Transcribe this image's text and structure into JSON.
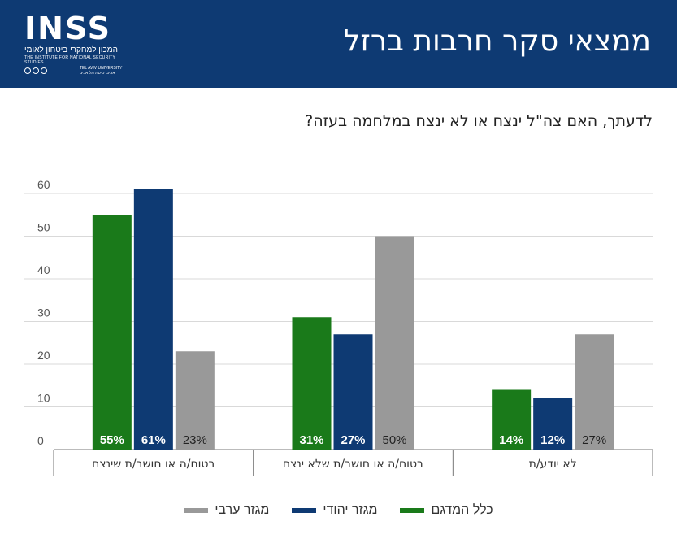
{
  "header": {
    "title": "ממצאי סקר חרבות ברזל",
    "logo": {
      "name": "INSS",
      "hebrew": "המכון למחקרי ביטחון לאומי",
      "english": "THE INSTITUTE FOR NATIONAL SECURITY STUDIES",
      "university": "אוניברסיטת תל אביב",
      "university_en": "TEL AVIV UNIVERSITY"
    }
  },
  "colors": {
    "header_bg": "#0e3a73",
    "green": "#1a7a1a",
    "blue": "#0e3a73",
    "gray": "#999999"
  },
  "chart_data": {
    "type": "bar",
    "title": "לדעתך, האם צה\"ל ינצח או לא ינצח במלחמה בעזה?",
    "categories": [
      "בטוח/ה או חושב/ת שינצח",
      "בטוח/ה או חושב/ת שלא ינצח",
      "לא יודע/ת"
    ],
    "series": [
      {
        "name": "כלל המדגם",
        "color": "#1a7a1a",
        "values": [
          55,
          31,
          14
        ],
        "labels": [
          "55%",
          "31%",
          "14%"
        ]
      },
      {
        "name": "מגזר יהודי",
        "color": "#0e3a73",
        "values": [
          61,
          27,
          12
        ],
        "labels": [
          "61%",
          "27%",
          "12%"
        ]
      },
      {
        "name": "מגזר ערבי",
        "color": "#999999",
        "values": [
          23,
          50,
          27
        ],
        "labels": [
          "23%",
          "50%",
          "27%"
        ]
      }
    ],
    "yticks": [
      0,
      10,
      20,
      30,
      40,
      50,
      60
    ],
    "ylim": [
      0,
      60
    ],
    "grid": true,
    "legend_position": "bottom"
  }
}
